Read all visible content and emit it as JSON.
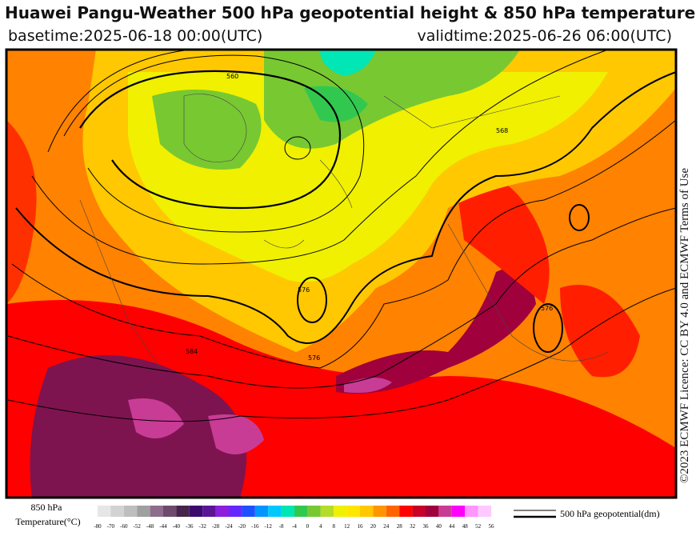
{
  "header": {
    "title": "Huawei Pangu-Weather 500 hPa geopotential height & 850 hPa temperature",
    "basetime": "basetime:2025-06-18 00:00(UTC)",
    "validtime": "validtime:2025-06-26 06:00(UTC)"
  },
  "licence": "©2023 ECMWF Licence: CC BY 4.0 and ECMWF Terms of Use",
  "legend": {
    "temperature_label": [
      "850 hPa",
      "Temperature(°C)"
    ],
    "contour_label": "500 hPa geopotential(dm)"
  },
  "contour_labels": [
    "560",
    "568",
    "576",
    "584",
    "576",
    "576"
  ],
  "colorbar": {
    "ticks": [
      -80,
      -70,
      -60,
      -52,
      -48,
      -44,
      -40,
      -36,
      -32,
      -28,
      -24,
      -20,
      -16,
      -12,
      -8,
      -4,
      0,
      4,
      8,
      12,
      16,
      20,
      24,
      28,
      32,
      36,
      40,
      44,
      48,
      52,
      56
    ],
    "colors": [
      "#e6e6e6",
      "#d2d2d2",
      "#bebebe",
      "#a0a0a0",
      "#8c6e8c",
      "#6e4b6e",
      "#46234b",
      "#3c0a6e",
      "#5a1496",
      "#8c1edc",
      "#6428ff",
      "#1e50ff",
      "#0096ff",
      "#00c8ff",
      "#00e6b4",
      "#32c850",
      "#78c832",
      "#b4dc28",
      "#f0f000",
      "#ffe600",
      "#ffc800",
      "#ff9600",
      "#ff6400",
      "#ff0000",
      "#c80028",
      "#a0003c",
      "#c83c96",
      "#ff00ff",
      "#ff96ff",
      "#ffc8ff"
    ]
  }
}
